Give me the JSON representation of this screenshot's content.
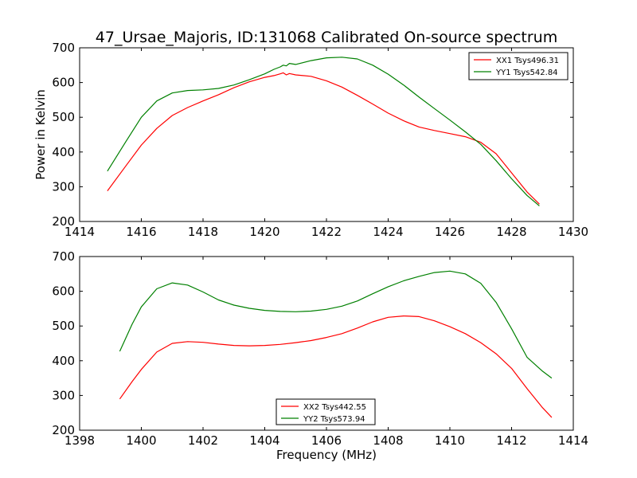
{
  "figure": {
    "title": "47_Ursae_Majoris, ID:131068 Calibrated On-source spectrum"
  },
  "chart_data": [
    {
      "type": "line",
      "title": "47_Ursae_Majoris, ID:131068 Calibrated On-source spectrum",
      "xlabel": "",
      "ylabel": "Power in Kelvin",
      "xlim": [
        1414,
        1430
      ],
      "ylim": [
        200,
        700
      ],
      "xticks": [
        1414,
        1416,
        1418,
        1420,
        1422,
        1424,
        1426,
        1428,
        1430
      ],
      "yticks": [
        200,
        300,
        400,
        500,
        600,
        700
      ],
      "grid": false,
      "legend_position": "top-right",
      "series": [
        {
          "name": "XX1 Tsys496.31",
          "color": "#ff0000",
          "x": [
            1414.9,
            1415.5,
            1416.0,
            1416.5,
            1417.0,
            1417.5,
            1418.0,
            1418.5,
            1419.0,
            1419.5,
            1420.0,
            1420.3,
            1420.5,
            1420.6,
            1420.7,
            1420.8,
            1421.0,
            1421.5,
            1422.0,
            1422.5,
            1423.0,
            1423.5,
            1424.0,
            1424.5,
            1425.0,
            1425.5,
            1426.0,
            1426.5,
            1427.0,
            1427.5,
            1428.0,
            1428.5,
            1428.9
          ],
          "y": [
            288,
            360,
            420,
            468,
            505,
            528,
            547,
            565,
            585,
            602,
            615,
            620,
            625,
            628,
            622,
            626,
            622,
            618,
            605,
            587,
            563,
            538,
            512,
            490,
            472,
            462,
            453,
            444,
            428,
            395,
            340,
            285,
            250
          ]
        },
        {
          "name": "YY1 Tsys542.84",
          "color": "#008000",
          "x": [
            1414.9,
            1415.5,
            1416.0,
            1416.5,
            1417.0,
            1417.5,
            1418.0,
            1418.5,
            1419.0,
            1419.5,
            1420.0,
            1420.3,
            1420.5,
            1420.6,
            1420.7,
            1420.8,
            1421.0,
            1421.5,
            1422.0,
            1422.5,
            1423.0,
            1423.5,
            1424.0,
            1424.5,
            1425.0,
            1425.5,
            1426.0,
            1426.5,
            1427.0,
            1427.5,
            1428.0,
            1428.5,
            1428.9
          ],
          "y": [
            345,
            430,
            500,
            547,
            570,
            577,
            579,
            583,
            593,
            608,
            625,
            638,
            645,
            650,
            648,
            655,
            652,
            663,
            671,
            673,
            668,
            650,
            624,
            593,
            558,
            525,
            492,
            458,
            422,
            375,
            323,
            275,
            245
          ]
        }
      ]
    },
    {
      "type": "line",
      "xlabel": "Frequency (MHz)",
      "ylabel": "",
      "xlim": [
        1398,
        1414
      ],
      "ylim": [
        200,
        700
      ],
      "xticks": [
        1398,
        1400,
        1402,
        1404,
        1406,
        1408,
        1410,
        1412,
        1414
      ],
      "yticks": [
        200,
        300,
        400,
        500,
        600,
        700
      ],
      "grid": false,
      "legend_position": "bottom-center",
      "series": [
        {
          "name": "XX2 Tsys442.55",
          "color": "#ff0000",
          "x": [
            1399.3,
            1399.7,
            1400.0,
            1400.5,
            1401.0,
            1401.5,
            1402.0,
            1402.5,
            1403.0,
            1403.5,
            1404.0,
            1404.5,
            1405.0,
            1405.5,
            1406.0,
            1406.5,
            1407.0,
            1407.5,
            1408.0,
            1408.5,
            1409.0,
            1409.5,
            1410.0,
            1410.5,
            1411.0,
            1411.5,
            1412.0,
            1412.5,
            1413.0,
            1413.3
          ],
          "y": [
            290,
            340,
            375,
            425,
            450,
            455,
            453,
            448,
            444,
            443,
            444,
            447,
            452,
            458,
            467,
            478,
            494,
            512,
            525,
            529,
            527,
            515,
            498,
            478,
            452,
            420,
            378,
            320,
            265,
            237
          ]
        },
        {
          "name": "YY2 Tsys573.94",
          "color": "#008000",
          "x": [
            1399.3,
            1399.7,
            1400.0,
            1400.5,
            1401.0,
            1401.5,
            1402.0,
            1402.5,
            1403.0,
            1403.5,
            1404.0,
            1404.5,
            1405.0,
            1405.5,
            1406.0,
            1406.5,
            1407.0,
            1407.5,
            1408.0,
            1408.5,
            1409.0,
            1409.5,
            1410.0,
            1410.5,
            1411.0,
            1411.5,
            1412.0,
            1412.5,
            1413.0,
            1413.3
          ],
          "y": [
            427,
            505,
            555,
            607,
            624,
            618,
            598,
            575,
            560,
            551,
            545,
            542,
            541,
            543,
            548,
            557,
            572,
            593,
            613,
            630,
            643,
            654,
            658,
            650,
            623,
            568,
            492,
            410,
            370,
            350
          ]
        }
      ]
    }
  ]
}
